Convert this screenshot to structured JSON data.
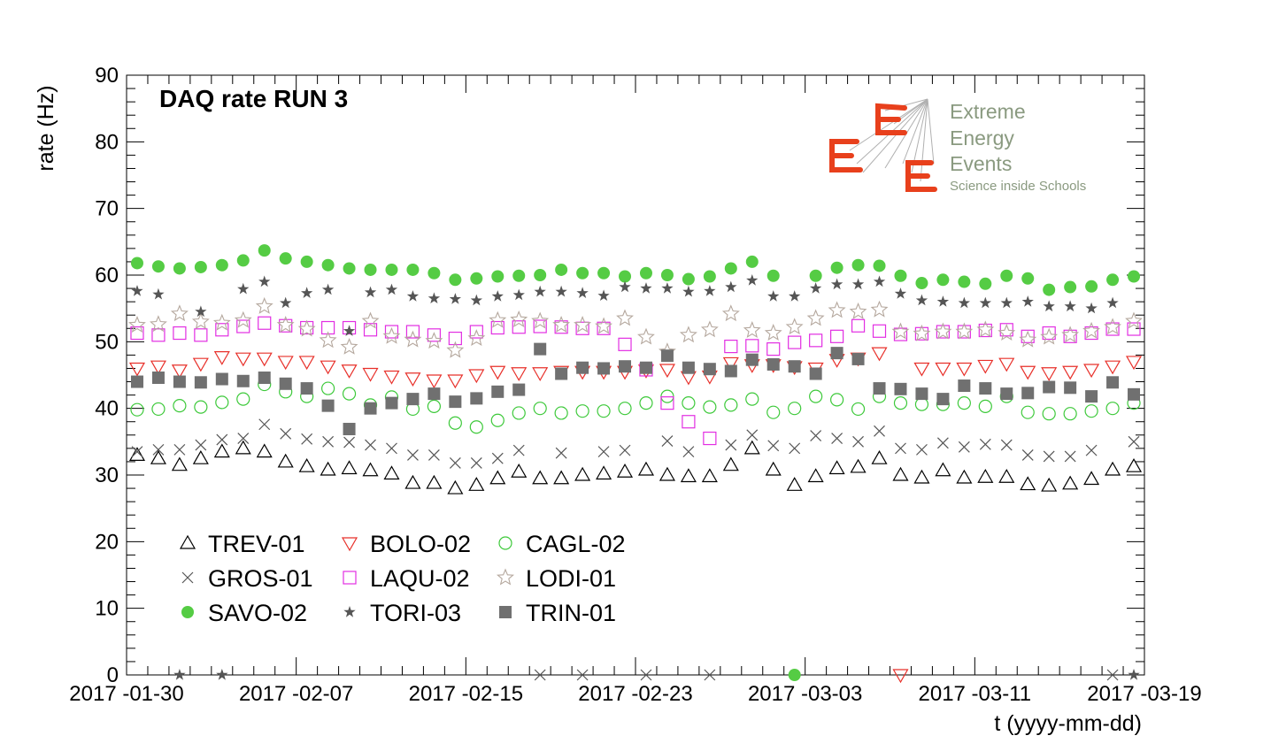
{
  "chart_data": {
    "type": "scatter",
    "title": "DAQ rate RUN 3",
    "xlabel": "t (yyyy-mm-dd)",
    "ylabel": "rate (Hz)",
    "x_unit": "day index (0 = 2017-01-30)",
    "xlim": [
      0,
      48
    ],
    "ylim": [
      0,
      90
    ],
    "y_ticks": [
      0,
      10,
      20,
      30,
      40,
      50,
      60,
      70,
      80,
      90
    ],
    "x_ticks": [
      {
        "day": 0,
        "label": "2017 -01-30"
      },
      {
        "day": 8,
        "label": "2017 -02-07"
      },
      {
        "day": 16,
        "label": "2017 -02-15"
      },
      {
        "day": 24,
        "label": "2017 -02-23"
      },
      {
        "day": 32,
        "label": "2017 -03-03"
      },
      {
        "day": 40,
        "label": "2017 -03-11"
      },
      {
        "day": 48,
        "label": "2017 -03-19"
      }
    ],
    "legend_position": "bottom-left",
    "series": [
      {
        "name": "TREV-01",
        "marker": "open-triangle-up",
        "color": "#000000",
        "x": [
          0,
          1,
          2,
          3,
          4,
          5,
          6,
          7,
          8,
          9,
          10,
          11,
          12,
          13,
          14,
          15,
          16,
          17,
          18,
          19,
          20,
          21,
          22,
          23,
          24,
          25,
          26,
          27,
          28,
          29,
          30,
          31,
          32,
          33,
          34,
          35,
          36,
          37,
          38,
          39,
          40,
          41,
          42,
          43,
          44,
          45,
          46,
          47
        ],
        "y": [
          33,
          32.5,
          31.5,
          32.5,
          33.5,
          34,
          33.5,
          32,
          31.3,
          30.8,
          31,
          30.7,
          30.2,
          28.8,
          28.8,
          28,
          28.5,
          29.5,
          30.5,
          29.5,
          29.5,
          30,
          30.2,
          30.5,
          30.8,
          30,
          29.8,
          29.8,
          31.5,
          34,
          30.8,
          28.5,
          29.8,
          31,
          31.2,
          32.5,
          30,
          29.6,
          30.7,
          29.6,
          29.7,
          29.7,
          28.6,
          28.4,
          28.7,
          29.4,
          30.8,
          31.3
        ]
      },
      {
        "name": "BOLO-02",
        "marker": "open-triangle-down",
        "color": "#e8302a",
        "x": [
          0,
          1,
          2,
          3,
          4,
          5,
          6,
          7,
          8,
          9,
          10,
          11,
          12,
          13,
          14,
          15,
          16,
          17,
          18,
          19,
          20,
          21,
          22,
          23,
          24,
          25,
          26,
          27,
          28,
          29,
          30,
          31,
          32,
          33,
          34,
          35,
          36,
          37,
          38,
          39,
          40,
          41,
          42,
          43,
          44,
          45,
          46,
          47
        ],
        "y": [
          46,
          46.3,
          45.7,
          46.7,
          47.7,
          47.5,
          47.5,
          47,
          47,
          46.3,
          45.7,
          45.2,
          44.8,
          44.5,
          44.2,
          44.2,
          45,
          45.5,
          45.3,
          45.3,
          45.5,
          45.5,
          45.5,
          45.5,
          45.7,
          45.8,
          44.7,
          44.8,
          46.8,
          46.5,
          46.5,
          46.2,
          46,
          47.3,
          47.5,
          48.3,
          0,
          46,
          46,
          46,
          46.4,
          46.7,
          45.5,
          45.3,
          45.5,
          45.8,
          46.3,
          47
        ]
      },
      {
        "name": "CAGL-02",
        "marker": "open-circle",
        "color": "#3dc93a",
        "x": [
          0,
          1,
          2,
          3,
          4,
          5,
          6,
          7,
          8,
          9,
          10,
          11,
          12,
          13,
          14,
          15,
          16,
          17,
          18,
          19,
          20,
          21,
          22,
          23,
          24,
          25,
          26,
          27,
          28,
          29,
          30,
          31,
          32,
          33,
          34,
          35,
          36,
          37,
          38,
          39,
          40,
          41,
          42,
          43,
          44,
          45,
          46,
          47
        ],
        "y": [
          39.8,
          39.9,
          40.4,
          40.2,
          40.9,
          41.4,
          43.6,
          42.5,
          41.8,
          43,
          42.2,
          40.5,
          41.7,
          39.9,
          40.3,
          37.8,
          37.2,
          38.2,
          39.3,
          40,
          39.3,
          39.6,
          39.6,
          40,
          40.8,
          41.8,
          40.8,
          40.2,
          40.5,
          41.4,
          39.4,
          40,
          41.8,
          41.3,
          39.9,
          41.8,
          40.8,
          40.6,
          40.6,
          40.8,
          40.3,
          41.8,
          39.4,
          39.2,
          39.2,
          39.6,
          40,
          40.8
        ]
      },
      {
        "name": "GROS-01",
        "marker": "cross",
        "color": "#555555",
        "x": [
          0,
          1,
          2,
          3,
          4,
          5,
          6,
          7,
          8,
          9,
          10,
          11,
          12,
          13,
          14,
          15,
          16,
          17,
          18,
          19,
          20,
          21,
          22,
          23,
          24,
          25,
          26,
          27,
          28,
          29,
          30,
          31,
          32,
          33,
          34,
          35,
          36,
          37,
          38,
          39,
          40,
          41,
          42,
          43,
          44,
          45,
          46,
          47
        ],
        "y": [
          33.5,
          33.8,
          33.8,
          34.5,
          35.3,
          35.5,
          37.6,
          36.2,
          35.4,
          35,
          34.9,
          34.5,
          34,
          33,
          33,
          31.8,
          31.8,
          32.5,
          33.7,
          0,
          33.3,
          0,
          33.5,
          33.7,
          0,
          35.1,
          33.5,
          0,
          34.5,
          36,
          34.4,
          34,
          35.9,
          35.5,
          35,
          36.6,
          34,
          33.8,
          34.8,
          34.2,
          34.6,
          34.5,
          33,
          32.8,
          32.8,
          33.7,
          0,
          35
        ]
      },
      {
        "name": "LAQU-02",
        "marker": "open-square",
        "color": "#e22ee2",
        "x": [
          0,
          1,
          2,
          3,
          4,
          5,
          6,
          7,
          8,
          9,
          10,
          11,
          12,
          13,
          14,
          15,
          16,
          17,
          18,
          19,
          20,
          21,
          22,
          23,
          24,
          25,
          26,
          27,
          28,
          29,
          30,
          31,
          32,
          33,
          34,
          35,
          36,
          37,
          38,
          39,
          40,
          41,
          42,
          43,
          44,
          45,
          46,
          47
        ],
        "y": [
          51.3,
          51,
          51.3,
          51,
          51.8,
          52.3,
          52.8,
          52.4,
          52.1,
          52.1,
          52.1,
          51.8,
          51.5,
          51.5,
          51,
          50.5,
          51.5,
          52.1,
          52.2,
          52.3,
          52.2,
          52,
          52,
          49.6,
          45.8,
          40.8,
          38,
          35.5,
          49.3,
          49.4,
          48.9,
          49.9,
          50.2,
          50.8,
          52.4,
          51.6,
          51.1,
          51.2,
          51.5,
          51.5,
          51.7,
          51.8,
          50.8,
          51.3,
          50.8,
          51.3,
          51.9,
          51.9
        ]
      },
      {
        "name": "LODI-01",
        "marker": "open-star",
        "color": "#b5a89e",
        "x": [
          0,
          1,
          2,
          3,
          4,
          5,
          6,
          7,
          8,
          9,
          10,
          11,
          12,
          13,
          14,
          15,
          16,
          17,
          18,
          19,
          20,
          21,
          22,
          23,
          24,
          25,
          26,
          27,
          28,
          29,
          30,
          31,
          32,
          33,
          34,
          35,
          36,
          37,
          38,
          39,
          40,
          41,
          42,
          43,
          44,
          45,
          46,
          47
        ],
        "y": [
          52.5,
          52.6,
          54.2,
          53,
          52.8,
          53.2,
          55.3,
          52.5,
          51.9,
          50.2,
          49.2,
          53.1,
          50.8,
          50.3,
          50.1,
          48.7,
          50.5,
          53.2,
          53.3,
          53.1,
          52.5,
          52.5,
          52.3,
          53.5,
          50.7,
          48.5,
          51,
          51.8,
          54.2,
          51.7,
          51.3,
          52.2,
          53.5,
          54.7,
          54.5,
          54.8,
          51.5,
          51.2,
          51.5,
          51.5,
          51.8,
          51.3,
          50.3,
          50.7,
          51,
          51.6,
          52.2,
          53.1
        ]
      },
      {
        "name": "SAVO-02",
        "marker": "filled-circle",
        "color": "#55cc44",
        "x": [
          0,
          1,
          2,
          3,
          4,
          5,
          6,
          7,
          8,
          9,
          10,
          11,
          12,
          13,
          14,
          15,
          16,
          17,
          18,
          19,
          20,
          21,
          22,
          23,
          24,
          25,
          26,
          27,
          28,
          29,
          30,
          31,
          32,
          33,
          34,
          35,
          36,
          37,
          38,
          39,
          40,
          41,
          42,
          43,
          44,
          45,
          46,
          47
        ],
        "y": [
          61.8,
          61.3,
          61,
          61.2,
          61.5,
          62.2,
          63.7,
          62.5,
          62,
          61.5,
          61,
          60.8,
          60.8,
          60.8,
          60.3,
          59.3,
          59.5,
          59.8,
          59.9,
          60,
          60.8,
          60.3,
          60.3,
          59.8,
          60.3,
          60,
          59.4,
          59.8,
          61,
          62,
          59.9,
          0,
          59.9,
          61.1,
          61.5,
          61.4,
          59.9,
          58.8,
          59.3,
          59,
          58.7,
          59.9,
          59.5,
          57.8,
          58.2,
          58.3,
          59.3,
          59.8
        ]
      },
      {
        "name": "TORI-03",
        "marker": "filled-star",
        "color": "#555555",
        "x": [
          0,
          1,
          2,
          3,
          4,
          5,
          6,
          7,
          8,
          9,
          10,
          11,
          12,
          13,
          14,
          15,
          16,
          17,
          18,
          19,
          20,
          21,
          22,
          23,
          24,
          25,
          26,
          27,
          28,
          29,
          30,
          31,
          32,
          33,
          34,
          35,
          36,
          37,
          38,
          39,
          40,
          41,
          42,
          43,
          44,
          45,
          46,
          47
        ],
        "y": [
          57.6,
          57.1,
          0,
          54.5,
          0,
          57.9,
          59,
          55.8,
          57.3,
          57.8,
          51.6,
          57.4,
          57.8,
          56.8,
          56.5,
          56.4,
          56.2,
          56.8,
          57,
          57.5,
          57.5,
          57.3,
          56.9,
          58.2,
          58,
          58,
          57.5,
          57.6,
          58.2,
          59.2,
          56.8,
          56.8,
          58,
          58.6,
          58.6,
          59,
          57.2,
          56.2,
          56,
          55.8,
          55.8,
          55.8,
          56,
          55.3,
          55.3,
          55,
          55.8,
          0
        ]
      },
      {
        "name": "TRIN-01",
        "marker": "filled-square",
        "color": "#707070",
        "x": [
          0,
          1,
          2,
          3,
          4,
          5,
          6,
          7,
          8,
          9,
          10,
          11,
          12,
          13,
          14,
          15,
          16,
          17,
          18,
          19,
          20,
          21,
          22,
          23,
          24,
          25,
          26,
          27,
          28,
          29,
          30,
          31,
          32,
          33,
          34,
          35,
          36,
          37,
          38,
          39,
          40,
          41,
          42,
          43,
          44,
          45,
          46,
          47
        ],
        "y": [
          44,
          44.6,
          44,
          43.9,
          44.4,
          44.1,
          44.6,
          43.7,
          43,
          40.4,
          36.9,
          40,
          40.8,
          41.4,
          42.2,
          41,
          41.5,
          42.5,
          42.8,
          48.9,
          45.2,
          46.1,
          46,
          46.3,
          46.1,
          47.9,
          46.1,
          45.9,
          45.6,
          47.3,
          46.6,
          46.3,
          45.2,
          48.3,
          47.4,
          43,
          42.9,
          42.2,
          41.4,
          43.4,
          43,
          42.2,
          42.3,
          43.2,
          43.1,
          41.8,
          43.9,
          42.1
        ]
      }
    ]
  },
  "logo": {
    "line1": "Extreme",
    "line2": "Energy",
    "line3": "Events",
    "tagline": "Science inside Schools"
  }
}
